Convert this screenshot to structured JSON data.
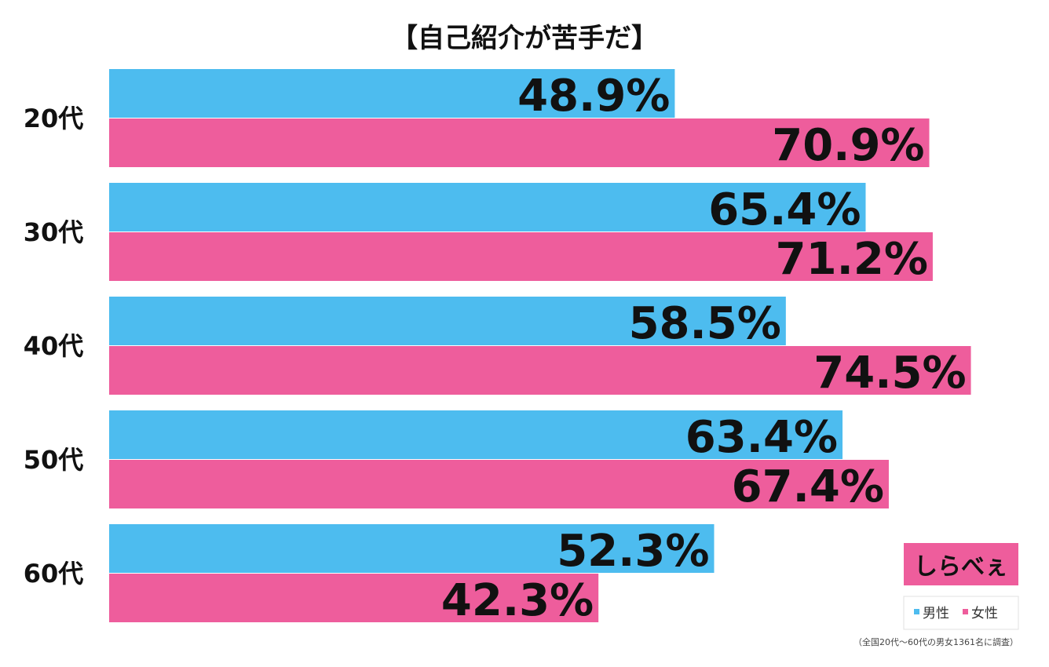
{
  "chart_data": {
    "type": "bar",
    "orientation": "horizontal",
    "title": "【自己紹介が苦手だ】",
    "categories": [
      "20代",
      "30代",
      "40代",
      "50代",
      "60代"
    ],
    "series": [
      {
        "name": "男性",
        "values": [
          48.9,
          65.4,
          58.5,
          63.4,
          52.3
        ],
        "color": "#4dbcef"
      },
      {
        "name": "女性",
        "values": [
          70.9,
          71.2,
          74.5,
          67.4,
          42.3
        ],
        "color": "#ee5d9c"
      }
    ],
    "value_suffix": "%",
    "xlim": [
      0,
      100
    ],
    "grid": false,
    "legend_position": "bottom-right",
    "note": "（全国20代〜60代の男女1361名に調査）"
  },
  "logo": {
    "text": "しらべぇ",
    "color": "#ee5d9c"
  }
}
